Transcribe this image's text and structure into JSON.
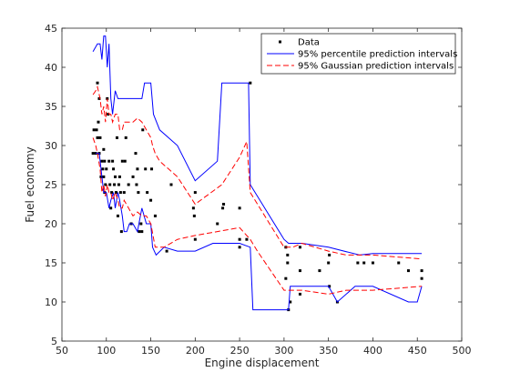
{
  "chart_data": {
    "type": "scatter",
    "xlabel": "Engine displacement",
    "ylabel": "Fuel economy",
    "xlim": [
      50,
      500
    ],
    "ylim": [
      5,
      45
    ],
    "xticks": [
      50,
      100,
      150,
      200,
      250,
      300,
      350,
      400,
      450,
      500
    ],
    "yticks": [
      5,
      10,
      15,
      20,
      25,
      30,
      35,
      40,
      45
    ],
    "grid": false,
    "legend_position": "top-right",
    "colors": {
      "data": "#000000",
      "percentile": "#0000ff",
      "gaussian": "#ff0000",
      "axis": "#262626"
    },
    "legend": [
      {
        "key": "data",
        "label": "Data",
        "style": "marker"
      },
      {
        "key": "percentile",
        "label": "95% percentile prediction intervals",
        "style": "solid"
      },
      {
        "key": "gaussian",
        "label": "95% Gaussian prediction intervals",
        "style": "dashed"
      }
    ],
    "series": [
      {
        "key": "data",
        "name": "Data",
        "style": "marker",
        "points": [
          [
            85,
            29
          ],
          [
            86,
            32
          ],
          [
            88,
            29
          ],
          [
            89,
            32
          ],
          [
            90,
            31
          ],
          [
            90,
            38
          ],
          [
            91,
            33
          ],
          [
            92,
            29
          ],
          [
            92,
            36
          ],
          [
            93,
            31
          ],
          [
            94,
            26
          ],
          [
            95,
            28
          ],
          [
            96,
            27
          ],
          [
            97,
            29.5
          ],
          [
            97,
            26
          ],
          [
            98,
            24
          ],
          [
            98,
            28
          ],
          [
            99,
            25
          ],
          [
            100,
            27
          ],
          [
            101,
            36
          ],
          [
            102,
            34
          ],
          [
            103,
            28
          ],
          [
            104,
            25
          ],
          [
            105,
            22
          ],
          [
            106,
            24
          ],
          [
            107,
            28
          ],
          [
            108,
            27
          ],
          [
            109,
            25
          ],
          [
            110,
            26
          ],
          [
            111,
            24
          ],
          [
            112,
            31
          ],
          [
            113,
            21
          ],
          [
            114,
            25
          ],
          [
            115,
            26
          ],
          [
            116,
            24
          ],
          [
            117,
            19
          ],
          [
            118,
            28
          ],
          [
            120,
            24
          ],
          [
            121,
            28
          ],
          [
            122,
            31
          ],
          [
            125,
            25
          ],
          [
            128,
            20
          ],
          [
            130,
            26
          ],
          [
            133,
            29
          ],
          [
            134,
            25
          ],
          [
            135,
            27
          ],
          [
            136,
            24
          ],
          [
            137,
            19
          ],
          [
            139,
            20
          ],
          [
            140,
            19
          ],
          [
            141,
            32
          ],
          [
            144,
            27
          ],
          [
            146,
            24
          ],
          [
            150,
            23
          ],
          [
            151,
            27
          ],
          [
            155,
            21
          ],
          [
            168,
            16.5
          ],
          [
            173,
            25
          ],
          [
            198,
            22
          ],
          [
            199,
            21
          ],
          [
            200,
            18
          ],
          [
            200,
            24
          ],
          [
            225,
            20
          ],
          [
            231,
            22
          ],
          [
            232,
            22.5
          ],
          [
            250,
            18
          ],
          [
            250,
            17
          ],
          [
            250,
            22
          ],
          [
            258,
            18
          ],
          [
            262,
            38
          ],
          [
            302,
            13
          ],
          [
            302,
            17
          ],
          [
            304,
            15
          ],
          [
            304,
            16
          ],
          [
            305,
            9
          ],
          [
            307,
            10
          ],
          [
            318,
            14
          ],
          [
            318,
            11
          ],
          [
            318,
            17
          ],
          [
            340,
            14
          ],
          [
            350,
            15
          ],
          [
            351,
            16
          ],
          [
            351,
            12
          ],
          [
            360,
            10
          ],
          [
            383,
            15
          ],
          [
            390,
            15
          ],
          [
            400,
            15
          ],
          [
            429,
            15
          ],
          [
            440,
            14
          ],
          [
            455,
            13
          ],
          [
            455,
            14
          ]
        ]
      },
      {
        "key": "percentile_upper",
        "name": "95% percentile prediction intervals",
        "style": "solid",
        "points": [
          [
            85,
            42
          ],
          [
            90,
            43
          ],
          [
            93,
            43
          ],
          [
            95,
            41
          ],
          [
            97,
            44
          ],
          [
            99,
            44
          ],
          [
            101,
            40
          ],
          [
            103,
            43
          ],
          [
            105,
            36
          ],
          [
            107,
            34
          ],
          [
            110,
            37
          ],
          [
            113,
            36
          ],
          [
            115,
            36
          ],
          [
            120,
            36
          ],
          [
            130,
            36
          ],
          [
            140,
            36
          ],
          [
            143,
            38
          ],
          [
            150,
            38
          ],
          [
            153,
            34
          ],
          [
            160,
            32
          ],
          [
            180,
            30
          ],
          [
            200,
            25.5
          ],
          [
            225,
            28
          ],
          [
            230,
            38
          ],
          [
            250,
            38
          ],
          [
            260,
            38
          ],
          [
            262,
            25
          ],
          [
            300,
            18
          ],
          [
            305,
            17.5
          ],
          [
            320,
            17.5
          ],
          [
            350,
            17
          ],
          [
            385,
            16
          ],
          [
            400,
            16.2
          ],
          [
            420,
            16.2
          ],
          [
            455,
            16.2
          ]
        ]
      },
      {
        "key": "percentile_lower",
        "name": "95% percentile prediction intervals",
        "style": "solid",
        "points": [
          [
            88,
            29
          ],
          [
            92,
            29
          ],
          [
            95,
            26
          ],
          [
            97,
            24
          ],
          [
            100,
            24
          ],
          [
            103,
            22
          ],
          [
            105,
            23
          ],
          [
            108,
            24
          ],
          [
            110,
            22
          ],
          [
            113,
            24
          ],
          [
            115,
            23
          ],
          [
            118,
            21
          ],
          [
            120,
            19
          ],
          [
            123,
            19
          ],
          [
            126,
            20
          ],
          [
            130,
            20
          ],
          [
            135,
            19
          ],
          [
            140,
            22
          ],
          [
            145,
            20
          ],
          [
            150,
            20
          ],
          [
            152,
            17
          ],
          [
            156,
            16
          ],
          [
            165,
            17
          ],
          [
            180,
            16.5
          ],
          [
            200,
            16.5
          ],
          [
            220,
            17.5
          ],
          [
            250,
            17.5
          ],
          [
            262,
            17
          ],
          [
            265,
            9
          ],
          [
            270,
            9
          ],
          [
            300,
            9
          ],
          [
            305,
            9
          ],
          [
            307,
            12
          ],
          [
            320,
            12
          ],
          [
            350,
            12
          ],
          [
            360,
            10
          ],
          [
            380,
            12
          ],
          [
            400,
            12
          ],
          [
            440,
            10
          ],
          [
            450,
            10
          ],
          [
            455,
            12
          ]
        ]
      },
      {
        "key": "gaussian_upper",
        "name": "95% Gaussian prediction intervals",
        "style": "dashed",
        "points": [
          [
            85,
            36.5
          ],
          [
            88,
            37
          ],
          [
            90,
            37.5
          ],
          [
            93,
            36
          ],
          [
            95,
            34
          ],
          [
            97,
            35
          ],
          [
            99,
            33
          ],
          [
            101,
            36
          ],
          [
            103,
            34
          ],
          [
            105,
            34
          ],
          [
            107,
            33
          ],
          [
            110,
            34
          ],
          [
            113,
            34
          ],
          [
            115,
            32
          ],
          [
            118,
            32
          ],
          [
            120,
            33
          ],
          [
            125,
            33
          ],
          [
            130,
            33
          ],
          [
            135,
            33.5
          ],
          [
            140,
            33
          ],
          [
            145,
            32
          ],
          [
            150,
            31
          ],
          [
            152,
            30
          ],
          [
            155,
            29
          ],
          [
            160,
            28
          ],
          [
            170,
            27
          ],
          [
            180,
            26
          ],
          [
            200,
            22.5
          ],
          [
            230,
            25
          ],
          [
            250,
            28.5
          ],
          [
            258,
            30.5
          ],
          [
            262,
            24
          ],
          [
            300,
            17
          ],
          [
            310,
            17
          ],
          [
            320,
            17.5
          ],
          [
            350,
            16.5
          ],
          [
            370,
            16
          ],
          [
            400,
            16
          ],
          [
            455,
            15.5
          ]
        ]
      },
      {
        "key": "gaussian_lower",
        "name": "95% Gaussian prediction intervals",
        "style": "dashed",
        "points": [
          [
            85,
            31
          ],
          [
            88,
            30
          ],
          [
            90,
            29
          ],
          [
            93,
            27
          ],
          [
            95,
            24
          ],
          [
            97,
            25
          ],
          [
            99,
            23.5
          ],
          [
            101,
            25
          ],
          [
            103,
            24
          ],
          [
            105,
            24
          ],
          [
            107,
            23
          ],
          [
            110,
            24
          ],
          [
            113,
            23
          ],
          [
            115,
            22
          ],
          [
            118,
            22
          ],
          [
            120,
            23
          ],
          [
            125,
            22
          ],
          [
            130,
            21
          ],
          [
            135,
            21.5
          ],
          [
            140,
            21
          ],
          [
            145,
            21
          ],
          [
            150,
            20
          ],
          [
            155,
            17
          ],
          [
            165,
            17
          ],
          [
            180,
            18
          ],
          [
            200,
            18.5
          ],
          [
            225,
            19
          ],
          [
            250,
            19.5
          ],
          [
            262,
            18
          ],
          [
            270,
            16.5
          ],
          [
            300,
            11.5
          ],
          [
            320,
            11.5
          ],
          [
            350,
            11
          ],
          [
            370,
            11.5
          ],
          [
            400,
            11.5
          ],
          [
            455,
            12
          ]
        ]
      }
    ]
  }
}
